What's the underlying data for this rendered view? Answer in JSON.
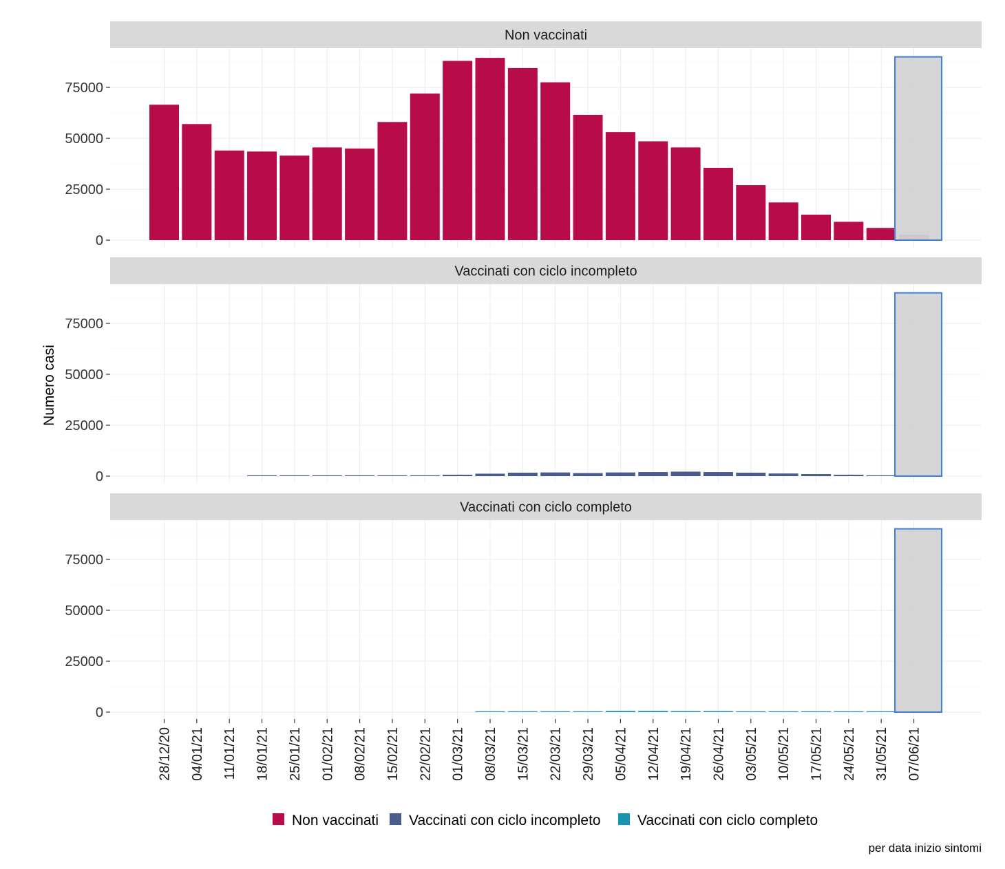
{
  "chart_data": {
    "type": "bar",
    "ylabel": "Numero casi",
    "xlabel": "",
    "caption": "per data inizio sintomi",
    "ylim": [
      0,
      93000
    ],
    "yticks": [
      0,
      25000,
      50000,
      75000
    ],
    "categories": [
      "28/12/20",
      "04/01/21",
      "11/01/21",
      "18/01/21",
      "25/01/21",
      "01/02/21",
      "08/02/21",
      "15/02/21",
      "22/02/21",
      "01/03/21",
      "08/03/21",
      "15/03/21",
      "22/03/21",
      "29/03/21",
      "05/04/21",
      "12/04/21",
      "19/04/21",
      "26/04/21",
      "03/05/21",
      "10/05/21",
      "17/05/21",
      "24/05/21",
      "31/05/21",
      "07/06/21"
    ],
    "highlight": {
      "category": "07/06/21",
      "value": 90000,
      "fill": "#d3d3d3",
      "stroke": "#3a7fd5"
    },
    "legend_position": "bottom",
    "grid": true,
    "series": [
      {
        "name": "Non vaccinati",
        "color": "#b80b4a",
        "values": [
          66500,
          57000,
          44000,
          43500,
          41500,
          45500,
          45000,
          58000,
          72000,
          88000,
          89500,
          84500,
          77500,
          61500,
          53000,
          48500,
          45500,
          35500,
          27000,
          18500,
          12500,
          9000,
          6000,
          2700
        ]
      },
      {
        "name": "Vaccinati con ciclo incompleto",
        "color": "#475c8a",
        "values": [
          0,
          0,
          0,
          300,
          400,
          400,
          100,
          50,
          100,
          700,
          1200,
          1700,
          1800,
          1500,
          1800,
          2000,
          2200,
          2000,
          1700,
          1300,
          1000,
          700,
          400,
          0
        ]
      },
      {
        "name": "Vaccinati con ciclo completo",
        "color": "#1a93b3",
        "values": [
          0,
          0,
          0,
          0,
          0,
          0,
          0,
          0,
          0,
          0,
          300,
          400,
          400,
          400,
          600,
          600,
          500,
          500,
          400,
          400,
          400,
          400,
          300,
          0
        ]
      }
    ]
  }
}
